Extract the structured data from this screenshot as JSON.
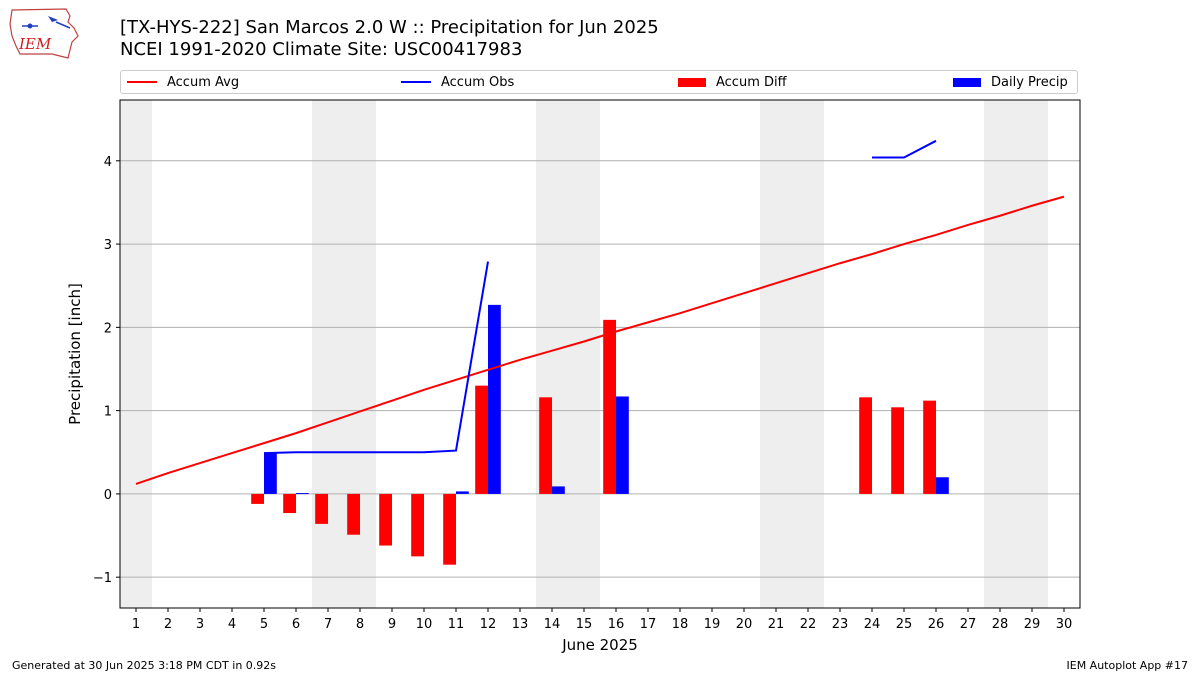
{
  "header": {
    "title_line1": "[TX-HYS-222] San Marcos 2.0 W :: Precipitation for Jun 2025",
    "title_line2": "NCEI 1991-2020 Climate Site: USC00417983",
    "logo_text": "IEM"
  },
  "footer": {
    "left": "Generated at 30 Jun 2025 3:18 PM CDT in 0.92s",
    "right": "IEM Autoplot App #17"
  },
  "colors": {
    "accum_avg": "#ff0000",
    "accum_obs": "#0000ff",
    "accum_diff": "#ff0000",
    "daily_precip": "#0000ff",
    "weekend_shade": "#eeeeee",
    "grid": "#b0b0b0"
  },
  "chart_data": {
    "type": "bar",
    "xlabel": "June 2025",
    "ylabel": "Precipitation [inch]",
    "xlim": [
      0.5,
      30.5
    ],
    "ylim": [
      -1.37,
      4.73
    ],
    "yticks": [
      -1,
      0,
      1,
      2,
      3,
      4
    ],
    "ytick_labels": [
      "−1",
      "0",
      "1",
      "2",
      "3",
      "4"
    ],
    "xticks": [
      1,
      2,
      3,
      4,
      5,
      6,
      7,
      8,
      9,
      10,
      11,
      12,
      13,
      14,
      15,
      16,
      17,
      18,
      19,
      20,
      21,
      22,
      23,
      24,
      25,
      26,
      27,
      28,
      29,
      30
    ],
    "xtick_labels": [
      "1",
      "2",
      "3",
      "4",
      "5",
      "6",
      "7",
      "8",
      "9",
      "10",
      "11",
      "12",
      "13",
      "14",
      "15",
      "16",
      "17",
      "18",
      "19",
      "20",
      "21",
      "22",
      "23",
      "24",
      "25",
      "26",
      "27",
      "28",
      "29",
      "30"
    ],
    "grid": "horizontal",
    "legend_position": "top",
    "weekend_days": [
      1,
      7,
      8,
      14,
      15,
      21,
      22,
      28,
      29
    ],
    "series": [
      {
        "name": "Accum Avg",
        "kind": "line",
        "x": [
          1,
          2,
          3,
          4,
          5,
          6,
          7,
          8,
          9,
          10,
          11,
          12,
          13,
          14,
          15,
          16,
          17,
          18,
          19,
          20,
          21,
          22,
          23,
          24,
          25,
          26,
          27,
          28,
          29,
          30
        ],
        "values": [
          0.12,
          0.25,
          0.37,
          0.49,
          0.61,
          0.73,
          0.86,
          0.99,
          1.12,
          1.25,
          1.37,
          1.49,
          1.61,
          1.72,
          1.83,
          1.95,
          2.06,
          2.17,
          2.29,
          2.41,
          2.53,
          2.65,
          2.77,
          2.88,
          3.0,
          3.11,
          3.23,
          3.34,
          3.46,
          3.57
        ]
      },
      {
        "name": "Accum Obs",
        "kind": "line",
        "segments": [
          {
            "x": [
              5,
              6,
              7,
              8,
              9,
              10,
              11,
              12
            ],
            "values": [
              0.49,
              0.5,
              0.5,
              0.5,
              0.5,
              0.5,
              0.52,
              2.79
            ]
          },
          {
            "x": [
              24,
              25,
              26
            ],
            "values": [
              4.04,
              4.04,
              4.24
            ]
          }
        ]
      },
      {
        "name": "Accum Diff",
        "kind": "bar",
        "x": [
          5,
          6,
          7,
          8,
          9,
          10,
          11,
          12,
          14,
          16,
          24,
          25,
          26
        ],
        "values": [
          -0.12,
          -0.23,
          -0.36,
          -0.49,
          -0.62,
          -0.75,
          -0.85,
          1.3,
          1.16,
          2.09,
          1.16,
          1.04,
          1.12
        ]
      },
      {
        "name": "Daily Precip",
        "kind": "bar",
        "x": [
          5,
          6,
          11,
          12,
          14,
          16,
          26
        ],
        "values": [
          0.49,
          0.01,
          0.03,
          2.27,
          0.09,
          1.17,
          0.2
        ]
      }
    ]
  }
}
